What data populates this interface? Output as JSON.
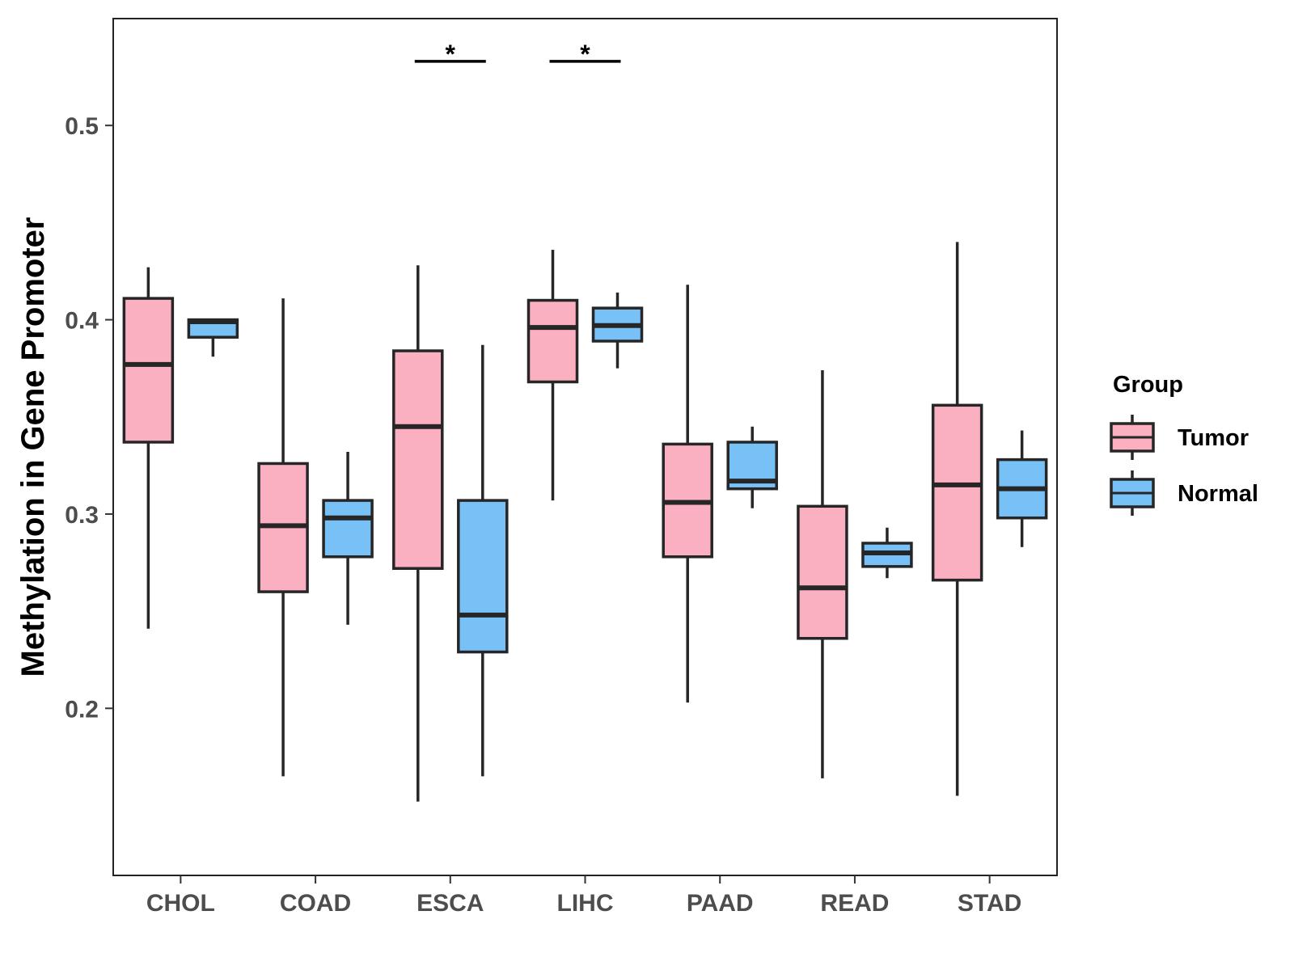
{
  "chart_data": {
    "type": "boxplot",
    "title": "",
    "xlabel": "",
    "ylabel": "Methylation in Gene Promoter",
    "ylim": [
      0.114,
      0.555
    ],
    "yticks": [
      "0.2",
      "0.3",
      "0.4",
      "0.5"
    ],
    "categories": [
      "CHOL",
      "COAD",
      "ESCA",
      "LIHC",
      "PAAD",
      "READ",
      "STAD"
    ],
    "legend": {
      "title": "Group",
      "position": "right"
    },
    "series": [
      {
        "name": "Tumor",
        "color": "#fbb0c2",
        "boxes": [
          {
            "min": 0.241,
            "q1": 0.337,
            "median": 0.377,
            "q3": 0.411,
            "max": 0.427
          },
          {
            "min": 0.165,
            "q1": 0.26,
            "median": 0.294,
            "q3": 0.326,
            "max": 0.411
          },
          {
            "min": 0.152,
            "q1": 0.272,
            "median": 0.345,
            "q3": 0.384,
            "max": 0.428
          },
          {
            "min": 0.307,
            "q1": 0.368,
            "median": 0.396,
            "q3": 0.41,
            "max": 0.436
          },
          {
            "min": 0.203,
            "q1": 0.278,
            "median": 0.306,
            "q3": 0.336,
            "max": 0.418
          },
          {
            "min": 0.164,
            "q1": 0.236,
            "median": 0.262,
            "q3": 0.304,
            "max": 0.374
          },
          {
            "min": 0.155,
            "q1": 0.266,
            "median": 0.315,
            "q3": 0.356,
            "max": 0.44
          }
        ]
      },
      {
        "name": "Normal",
        "color": "#78c1f7",
        "boxes": [
          {
            "min": 0.381,
            "q1": 0.391,
            "median": 0.399,
            "q3": 0.4,
            "max": 0.4
          },
          {
            "min": 0.243,
            "q1": 0.278,
            "median": 0.298,
            "q3": 0.307,
            "max": 0.332
          },
          {
            "min": 0.165,
            "q1": 0.229,
            "median": 0.248,
            "q3": 0.307,
            "max": 0.387
          },
          {
            "min": 0.375,
            "q1": 0.389,
            "median": 0.397,
            "q3": 0.406,
            "max": 0.414
          },
          {
            "min": 0.303,
            "q1": 0.313,
            "median": 0.317,
            "q3": 0.337,
            "max": 0.345
          },
          {
            "min": 0.267,
            "q1": 0.273,
            "median": 0.28,
            "q3": 0.285,
            "max": 0.293
          },
          {
            "min": 0.283,
            "q1": 0.298,
            "median": 0.313,
            "q3": 0.328,
            "max": 0.343
          }
        ]
      }
    ],
    "annotations": [
      {
        "category": "ESCA",
        "label": "*",
        "y": 0.533
      },
      {
        "category": "LIHC",
        "label": "*",
        "y": 0.533
      }
    ]
  }
}
